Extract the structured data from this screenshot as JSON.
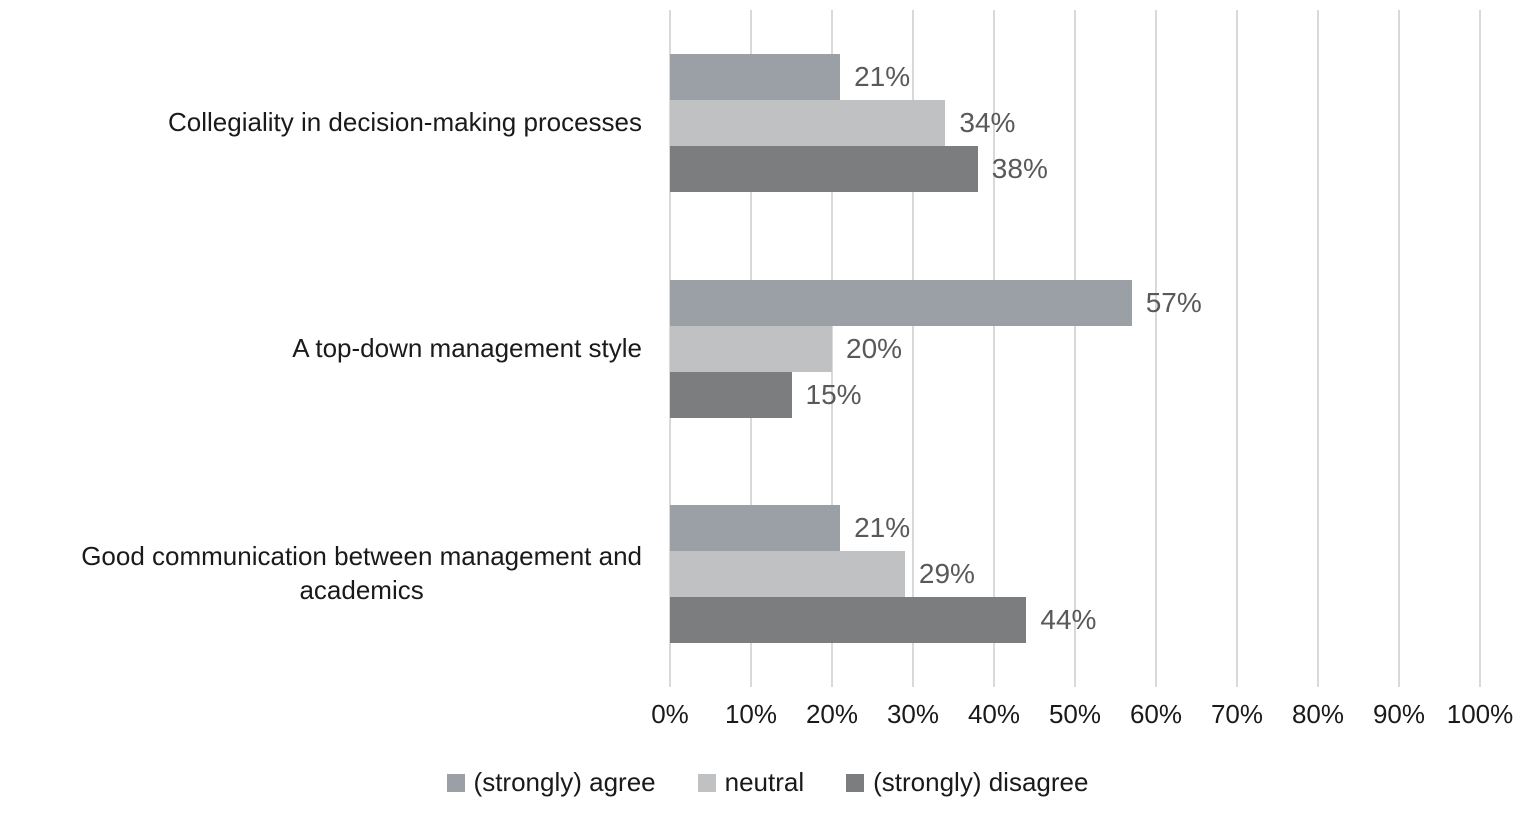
{
  "chart_data": {
    "type": "bar",
    "orientation": "horizontal",
    "title": "",
    "categories": [
      "Collegiality in decision-making processes",
      "A top-down management style",
      "Good communication between management and\nacademics"
    ],
    "series": [
      {
        "name": "(strongly) agree",
        "color": "#9aa0a5",
        "values": [
          21,
          57,
          21
        ],
        "labels": [
          "21%",
          "57%",
          "21%"
        ]
      },
      {
        "name": "neutral",
        "color": "#c0c1c3",
        "values": [
          34,
          20,
          29
        ],
        "labels": [
          "34%",
          "20%",
          "29%"
        ]
      },
      {
        "name": "(strongly) disagree",
        "color": "#7b7d7f",
        "values": [
          38,
          15,
          44
        ],
        "labels": [
          "38%",
          "15%",
          "44%"
        ]
      }
    ],
    "xlim": [
      0,
      100
    ],
    "x_ticks": [
      "0%",
      "10%",
      "20%",
      "30%",
      "40%",
      "50%",
      "60%",
      "70%",
      "80%",
      "90%",
      "100%"
    ],
    "grid": true,
    "legend_position": "bottom",
    "colors": {
      "gridline": "#d9d9d9",
      "data_label": "#595959",
      "axis_text": "#1a1a1a",
      "background": "#ffffff"
    }
  }
}
